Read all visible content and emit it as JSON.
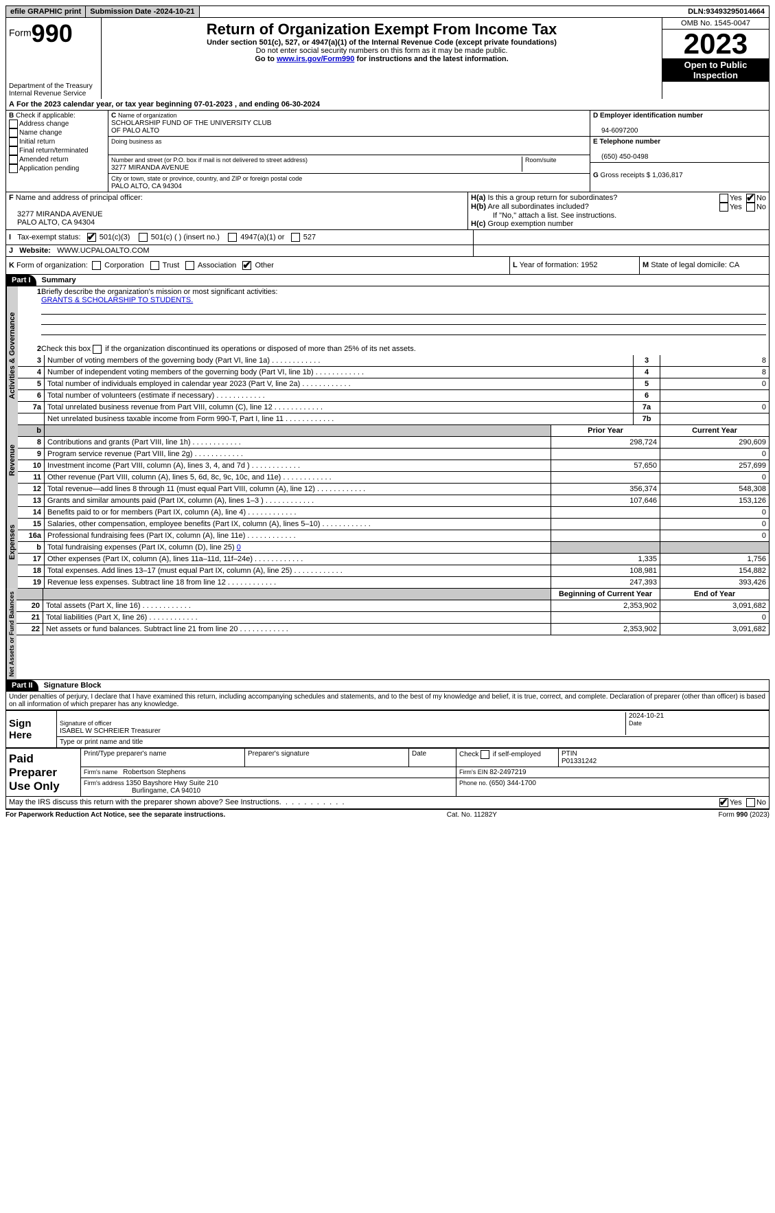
{
  "topbar": {
    "efile": "efile GRAPHIC print",
    "sub_date_label": "Submission Date - ",
    "sub_date": "2024-10-21",
    "dln_label": "DLN: ",
    "dln": "93493295014664"
  },
  "hdr": {
    "form_word": "Form",
    "form_no": "990",
    "dept": "Department of the Treasury",
    "irs": "Internal Revenue Service",
    "title": "Return of Organization Exempt From Income Tax",
    "sub1": "Under section 501(c), 527, or 4947(a)(1) of the Internal Revenue Code (except private foundations)",
    "sub2": "Do not enter social security numbers on this form as it may be made public.",
    "sub3_a": "Go to ",
    "sub3_link": "www.irs.gov/Form990",
    "sub3_b": " for instructions and the latest information.",
    "omb_label": "OMB No. ",
    "omb": "1545-0047",
    "year": "2023",
    "open": "Open to Public Inspection"
  },
  "a_line": {
    "a": "A",
    "text": "For the 2023 calendar year, or tax year beginning ",
    "begin": "07-01-2023",
    "mid": "  , and ending ",
    "end": "06-30-2024"
  },
  "b": {
    "label": "B",
    "check_label": " Check if applicable:",
    "opts": [
      "Address change",
      "Name change",
      "Initial return",
      "Final return/terminated",
      "Amended return",
      "Application pending"
    ]
  },
  "c": {
    "label": "C",
    "name_label": "Name of organization",
    "name1": "SCHOLARSHIP FUND OF THE UNIVERSITY CLUB",
    "name2": "OF PALO ALTO",
    "dba_label": "Doing business as",
    "street_label": "Number and street (or P.O. box if mail is not delivered to street address)",
    "street": "3277 MIRANDA AVENUE",
    "room_label": "Room/suite",
    "city_label": "City or town, state or province, country, and ZIP or foreign postal code",
    "city": "PALO ALTO, CA  94304"
  },
  "d": {
    "label": "D Employer identification number",
    "val": "94-6097200"
  },
  "e": {
    "label": "E Telephone number",
    "val": "(650) 450-0498"
  },
  "g": {
    "label": "G",
    "text": " Gross receipts $ ",
    "val": "1,036,817"
  },
  "f": {
    "label": "F",
    "text": " Name and address of principal officer:",
    "addr1": "3277 MIRANDA AVENUE",
    "addr2": "PALO ALTO, CA  94304"
  },
  "h": {
    "a_label": "H(a)",
    "a_text": " Is this a group return for subordinates?",
    "b_label": "H(b)",
    "b_text": " Are all subordinates included?",
    "note": "If \"No,\" attach a list. See instructions.",
    "c_label": "H(c)",
    "c_text": " Group exemption number ",
    "yes": "Yes",
    "no": "No"
  },
  "i": {
    "label": "I",
    "text": "Tax-exempt status:",
    "o1": "501(c)(3)",
    "o2": "501(c) (   ) (insert no.)",
    "o3": "4947(a)(1) or",
    "o4": "527"
  },
  "j": {
    "label": "J",
    "text": "Website: ",
    "val": "WWW.UCPALOALTO.COM"
  },
  "k": {
    "label": "K",
    "text": " Form of organization:",
    "o1": "Corporation",
    "o2": "Trust",
    "o3": "Association",
    "o4": "Other"
  },
  "l": {
    "label": "L",
    "text": " Year of formation: ",
    "val": "1952"
  },
  "m": {
    "label": "M",
    "text": " State of legal domicile: ",
    "val": "CA"
  },
  "part1": {
    "label": "Part I",
    "title": "Summary"
  },
  "p1": {
    "l1": "Briefly describe the organization's mission or most significant activities:",
    "l1v": "GRANTS & SCHOLARSHIP TO STUDENTS.",
    "l2": "Check this box         if the organization discontinued its operations or disposed of more than 25% of its net assets.",
    "rows_gov": [
      {
        "n": "3",
        "d": "Number of voting members of the governing body (Part VI, line 1a)",
        "l": "3",
        "v": "8"
      },
      {
        "n": "4",
        "d": "Number of independent voting members of the governing body (Part VI, line 1b)",
        "l": "4",
        "v": "8"
      },
      {
        "n": "5",
        "d": "Total number of individuals employed in calendar year 2023 (Part V, line 2a)",
        "l": "5",
        "v": "0"
      },
      {
        "n": "6",
        "d": "Total number of volunteers (estimate if necessary)",
        "l": "6",
        "v": ""
      },
      {
        "n": "7a",
        "d": "Total unrelated business revenue from Part VIII, column (C), line 12",
        "l": "7a",
        "v": "0"
      },
      {
        "n": "",
        "d": "Net unrelated business taxable income from Form 990-T, Part I, line 11",
        "l": "7b",
        "v": ""
      }
    ],
    "col_prior": "Prior Year",
    "col_curr": "Current Year",
    "rows_rev": [
      {
        "n": "8",
        "d": "Contributions and grants (Part VIII, line 1h)",
        "p": "298,724",
        "c": "290,609"
      },
      {
        "n": "9",
        "d": "Program service revenue (Part VIII, line 2g)",
        "p": "",
        "c": "0"
      },
      {
        "n": "10",
        "d": "Investment income (Part VIII, column (A), lines 3, 4, and 7d )",
        "p": "57,650",
        "c": "257,699"
      },
      {
        "n": "11",
        "d": "Other revenue (Part VIII, column (A), lines 5, 6d, 8c, 9c, 10c, and 11e)",
        "p": "",
        "c": "0"
      },
      {
        "n": "12",
        "d": "Total revenue—add lines 8 through 11 (must equal Part VIII, column (A), line 12)",
        "p": "356,374",
        "c": "548,308"
      }
    ],
    "rows_exp": [
      {
        "n": "13",
        "d": "Grants and similar amounts paid (Part IX, column (A), lines 1–3 )",
        "p": "107,646",
        "c": "153,126"
      },
      {
        "n": "14",
        "d": "Benefits paid to or for members (Part IX, column (A), line 4)",
        "p": "",
        "c": "0"
      },
      {
        "n": "15",
        "d": "Salaries, other compensation, employee benefits (Part IX, column (A), lines 5–10)",
        "p": "",
        "c": "0"
      },
      {
        "n": "16a",
        "d": "Professional fundraising fees (Part IX, column (A), line 11e)",
        "p": "",
        "c": "0"
      }
    ],
    "l16b_n": "b",
    "l16b": "Total fundraising expenses (Part IX, column (D), line 25) ",
    "l16b_v": "0",
    "rows_exp2": [
      {
        "n": "17",
        "d": "Other expenses (Part IX, column (A), lines 11a–11d, 11f–24e)",
        "p": "1,335",
        "c": "1,756"
      },
      {
        "n": "18",
        "d": "Total expenses. Add lines 13–17 (must equal Part IX, column (A), line 25)",
        "p": "108,981",
        "c": "154,882"
      },
      {
        "n": "19",
        "d": "Revenue less expenses. Subtract line 18 from line 12",
        "p": "247,393",
        "c": "393,426"
      }
    ],
    "col_begin": "Beginning of Current Year",
    "col_end": "End of Year",
    "rows_net": [
      {
        "n": "20",
        "d": "Total assets (Part X, line 16)",
        "p": "2,353,902",
        "c": "3,091,682"
      },
      {
        "n": "21",
        "d": "Total liabilities (Part X, line 26)",
        "p": "",
        "c": "0"
      },
      {
        "n": "22",
        "d": "Net assets or fund balances. Subtract line 21 from line 20",
        "p": "2,353,902",
        "c": "3,091,682"
      }
    ]
  },
  "tabs": {
    "gov": "Activities & Governance",
    "rev": "Revenue",
    "exp": "Expenses",
    "net": "Net Assets or Fund Balances"
  },
  "part2": {
    "label": "Part II",
    "title": "Signature Block"
  },
  "sig": {
    "perjury": "Under penalties of perjury, I declare that I have examined this return, including accompanying schedules and statements, and to the best of my knowledge and belief, it is true, correct, and complete. Declaration of preparer (other than officer) is based on all information of which preparer has any knowledge.",
    "sign_here": "Sign Here",
    "date": "2024-10-21",
    "sig_officer": "Signature of officer",
    "officer": "ISABEL W SCHREIER  Treasurer",
    "type_name": "Type or print name and title",
    "date_label": "Date",
    "paid": "Paid Preparer Use Only",
    "print_name": "Print/Type preparer's name",
    "prep_sig": "Preparer's signature",
    "check_self": "Check         if self-employed",
    "ptin_label": "PTIN",
    "ptin": "P01331242",
    "firm_name_label": "Firm's name   ",
    "firm_name": "Robertson Stephens",
    "firm_ein_label": "Firm's EIN  ",
    "firm_ein": "82-2497219",
    "firm_addr_label": "Firm's address ",
    "firm_addr1": "1350 Bayshore Hwy Suite 210",
    "firm_addr2": "Burlingame, CA  94010",
    "phone_label": "Phone no. ",
    "phone": "(650) 344-1700",
    "may_irs": "May the IRS discuss this return with the preparer shown above? See Instructions.",
    "yes": "Yes",
    "no": "No"
  },
  "footer": {
    "pra": "For Paperwork Reduction Act Notice, see the separate instructions.",
    "cat": "Cat. No. 11282Y",
    "form": "Form 990 (2023)"
  }
}
